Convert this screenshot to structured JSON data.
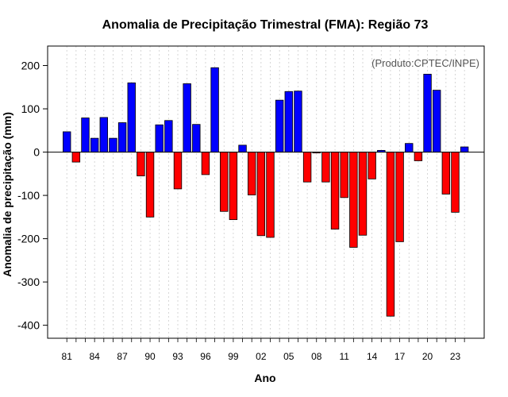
{
  "chart_data": {
    "type": "bar",
    "title": "Anomalia de Precipitação Trimestral (FMA): Região 73",
    "xlabel": "Ano",
    "ylabel": "Anomalia de precipitação (mm)",
    "source_note": "(Produto:CPTEC/INPE)",
    "ylim": [
      -430,
      245
    ],
    "yticks": [
      200,
      100,
      0,
      -100,
      -200,
      -300,
      -400
    ],
    "xtick_labels": [
      "81",
      "84",
      "87",
      "90",
      "93",
      "96",
      "99",
      "02",
      "05",
      "08",
      "11",
      "14",
      "17",
      "20",
      "23"
    ],
    "xtick_years": [
      1981,
      1984,
      1987,
      1990,
      1993,
      1996,
      1999,
      2002,
      2005,
      2008,
      2011,
      2014,
      2017,
      2020,
      2023
    ],
    "years": [
      1981,
      1982,
      1983,
      1984,
      1985,
      1986,
      1987,
      1988,
      1989,
      1990,
      1991,
      1992,
      1993,
      1994,
      1995,
      1996,
      1997,
      1998,
      1999,
      2000,
      2001,
      2002,
      2003,
      2004,
      2005,
      2006,
      2007,
      2008,
      2009,
      2010,
      2011,
      2012,
      2013,
      2014,
      2015,
      2016,
      2017,
      2018,
      2019,
      2020,
      2021,
      2022,
      2023,
      2024
    ],
    "values": [
      47,
      -23,
      79,
      32,
      80,
      32,
      68,
      160,
      -55,
      -150,
      63,
      73,
      -85,
      158,
      64,
      -52,
      195,
      -137,
      -156,
      16,
      -99,
      -193,
      -197,
      120,
      140,
      141,
      -69,
      -2,
      -69,
      -178,
      -105,
      -220,
      -192,
      -62,
      4,
      -379,
      -207,
      20,
      -20,
      180,
      143,
      -97,
      -139,
      12
    ],
    "colors": {
      "positive": "#0000ff",
      "negative": "#ff0000"
    },
    "grid": true
  }
}
